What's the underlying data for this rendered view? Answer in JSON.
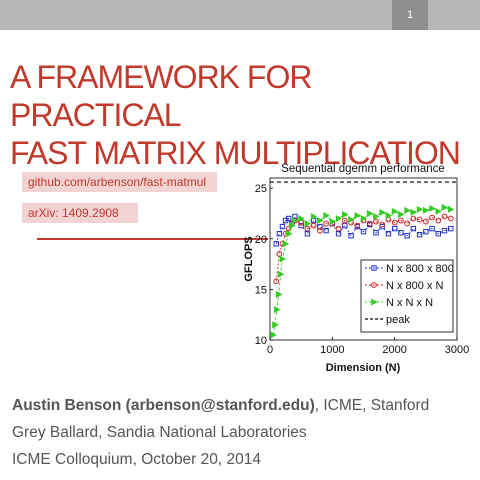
{
  "slide": {
    "page_number": "1",
    "title_line1": "A FRAMEWORK FOR PRACTICAL",
    "title_line2": "FAST MATRIX MULTIPLICATION",
    "links": [
      "github.com/arbenson/fast-matmul",
      "arXiv: 1409.2908"
    ],
    "authors": {
      "line1_bold": "Austin Benson (arbenson@stanford.edu)",
      "line1_rest": ", ICME, Stanford",
      "line2": "Grey Ballard, Sandia National Laboratories",
      "line3": "ICME Colloquium, October 20, 2014"
    },
    "colors": {
      "accent": "#c0392b",
      "link_bg": "#f2d3d3",
      "bar": "#b7b7b7"
    }
  },
  "chart_data": {
    "type": "scatter",
    "title": "Sequential dgemm performance",
    "xlabel": "Dimension (N)",
    "ylabel": "GFLOPS",
    "xlim": [
      0,
      3000
    ],
    "ylim": [
      10,
      26
    ],
    "xticks": [
      "0",
      "1000",
      "2000",
      "3000"
    ],
    "yticks": [
      "10",
      "15",
      "20",
      "25"
    ],
    "legend_position": "bottom-right",
    "series": [
      {
        "name": "N x 800 x 800",
        "color": "#2233cc",
        "marker": "square",
        "x": [
          100,
          150,
          200,
          250,
          300,
          350,
          400,
          500,
          600,
          700,
          800,
          900,
          1000,
          1100,
          1200,
          1300,
          1400,
          1500,
          1600,
          1700,
          1800,
          1900,
          2000,
          2100,
          2200,
          2300,
          2400,
          2500,
          2600,
          2700,
          2800,
          2900
        ],
        "y": [
          19.5,
          20.5,
          21.2,
          21.8,
          22.0,
          21.5,
          22.2,
          21.3,
          20.5,
          21.8,
          21.2,
          20.8,
          21.5,
          20.5,
          21.3,
          20.3,
          21.2,
          20.7,
          21.4,
          20.6,
          21.2,
          20.5,
          21.0,
          20.6,
          20.3,
          21.0,
          20.4,
          20.7,
          21.0,
          20.5,
          20.8,
          21.0
        ]
      },
      {
        "name": "N x 800 x N",
        "color": "#cc2222",
        "marker": "circle",
        "x": [
          100,
          150,
          200,
          250,
          300,
          350,
          400,
          500,
          600,
          700,
          800,
          900,
          1000,
          1100,
          1200,
          1300,
          1400,
          1500,
          1600,
          1700,
          1800,
          1900,
          2000,
          2100,
          2200,
          2300,
          2400,
          2500,
          2600,
          2700,
          2800,
          2900
        ],
        "y": [
          15.8,
          18.5,
          19.5,
          20.5,
          21.0,
          21.5,
          21.8,
          21.6,
          21.0,
          21.3,
          20.8,
          21.5,
          21.5,
          21.0,
          21.8,
          21.6,
          21.3,
          21.8,
          21.5,
          21.7,
          21.4,
          21.9,
          21.6,
          21.8,
          21.5,
          22.0,
          21.9,
          21.7,
          22.1,
          21.8,
          22.2,
          22.0
        ]
      },
      {
        "name": "N x N x N",
        "color": "#33cc22",
        "marker": "triangle",
        "x": [
          50,
          80,
          110,
          140,
          170,
          200,
          250,
          300,
          350,
          400,
          500,
          600,
          700,
          800,
          900,
          1000,
          1100,
          1200,
          1300,
          1400,
          1500,
          1600,
          1700,
          1800,
          1900,
          2000,
          2100,
          2200,
          2300,
          2400,
          2500,
          2600,
          2700,
          2800,
          2900
        ],
        "y": [
          10.5,
          11.5,
          13.0,
          14.5,
          16.5,
          18.0,
          19.5,
          20.5,
          21.3,
          21.8,
          22.0,
          21.5,
          22.2,
          21.8,
          22.3,
          21.7,
          22.0,
          22.4,
          21.9,
          22.3,
          22.0,
          22.5,
          22.2,
          22.6,
          22.3,
          22.7,
          22.4,
          22.8,
          22.6,
          22.9,
          22.8,
          23.0,
          22.7,
          23.1,
          22.9
        ]
      },
      {
        "name": "peak",
        "color": "#000000",
        "marker": "dashed-line",
        "x": [
          0,
          3000
        ],
        "y": [
          25.6,
          25.6
        ]
      }
    ]
  }
}
